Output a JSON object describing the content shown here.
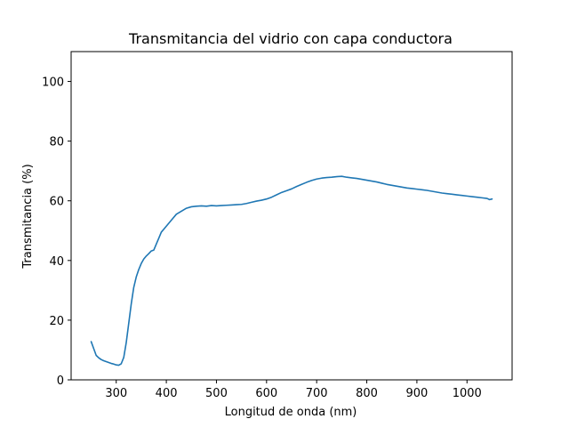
{
  "chart_data": {
    "type": "line",
    "title": "Transmitancia del vidrio con capa conductora",
    "xlabel": "Longitud de onda (nm)",
    "ylabel": "Transmitancia (%)",
    "xlim": [
      210,
      1090
    ],
    "ylim": [
      0,
      110
    ],
    "xticks": [
      300,
      400,
      500,
      600,
      700,
      800,
      900,
      1000
    ],
    "yticks": [
      0,
      20,
      40,
      60,
      80,
      100
    ],
    "grid": false,
    "colors": {
      "line": "#1f77b4",
      "axes": "#000000",
      "background": "#ffffff"
    },
    "series": [
      {
        "x": [
          250,
          255,
          260,
          265,
          270,
          275,
          280,
          285,
          290,
          295,
          300,
          305,
          310,
          315,
          320,
          325,
          330,
          335,
          340,
          345,
          350,
          355,
          360,
          365,
          370,
          375,
          380,
          385,
          390,
          395,
          400,
          410,
          420,
          430,
          440,
          450,
          460,
          470,
          480,
          490,
          500,
          510,
          520,
          530,
          540,
          550,
          560,
          570,
          580,
          590,
          600,
          610,
          620,
          630,
          640,
          650,
          660,
          670,
          680,
          690,
          700,
          710,
          720,
          730,
          740,
          750,
          760,
          770,
          780,
          790,
          800,
          810,
          820,
          830,
          840,
          850,
          860,
          870,
          880,
          890,
          900,
          910,
          920,
          930,
          940,
          950,
          960,
          970,
          980,
          990,
          1000,
          1010,
          1020,
          1030,
          1040,
          1045,
          1050
        ],
        "y": [
          12.8,
          10.5,
          8.2,
          7.4,
          6.8,
          6.4,
          6.1,
          5.8,
          5.5,
          5.3,
          5.0,
          4.9,
          5.4,
          7.5,
          12.5,
          19.0,
          25.5,
          31.0,
          34.5,
          37.0,
          39.0,
          40.5,
          41.5,
          42.3,
          43.2,
          43.5,
          45.5,
          47.5,
          49.5,
          50.5,
          51.5,
          53.5,
          55.5,
          56.5,
          57.5,
          58.0,
          58.2,
          58.3,
          58.2,
          58.4,
          58.3,
          58.4,
          58.5,
          58.6,
          58.7,
          58.8,
          59.1,
          59.5,
          59.9,
          60.2,
          60.6,
          61.2,
          62.0,
          62.8,
          63.4,
          64.0,
          64.8,
          65.5,
          66.2,
          66.8,
          67.3,
          67.6,
          67.8,
          67.9,
          68.1,
          68.2,
          67.9,
          67.7,
          67.5,
          67.2,
          66.9,
          66.6,
          66.3,
          65.9,
          65.5,
          65.2,
          64.9,
          64.6,
          64.3,
          64.1,
          63.9,
          63.7,
          63.5,
          63.2,
          62.9,
          62.6,
          62.4,
          62.2,
          62.0,
          61.8,
          61.6,
          61.4,
          61.2,
          61.0,
          60.8,
          60.4,
          60.6
        ]
      }
    ]
  }
}
